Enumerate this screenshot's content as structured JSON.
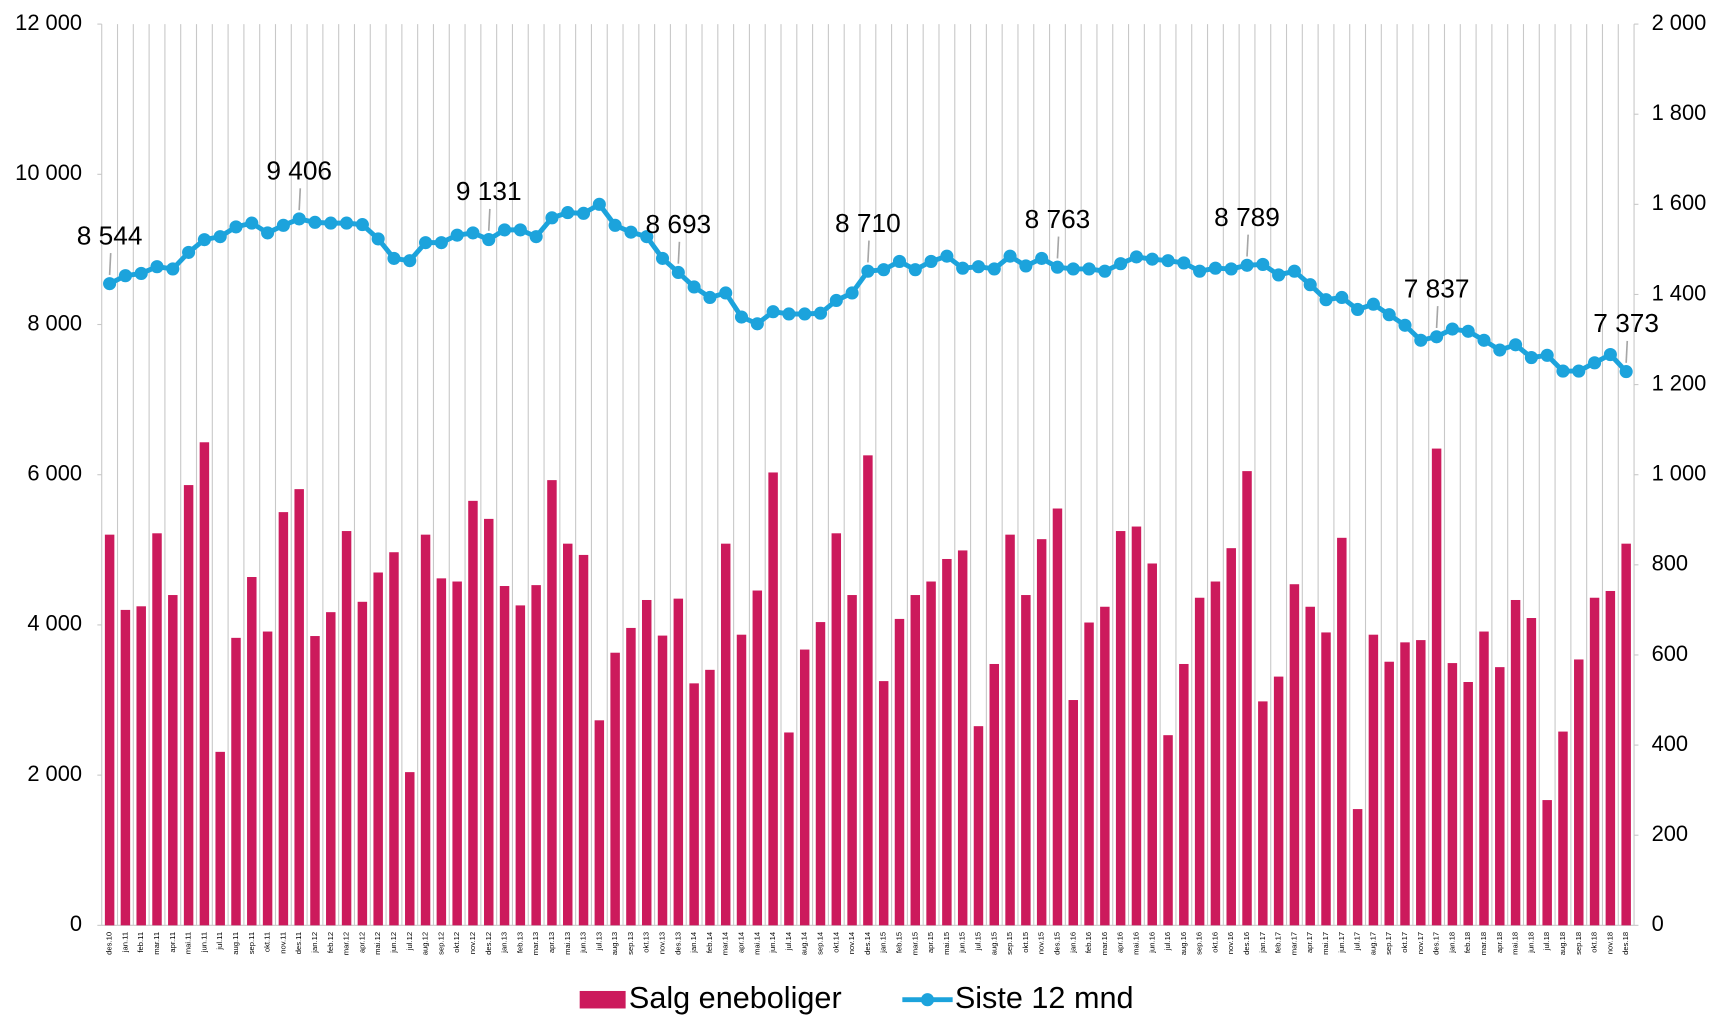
{
  "chart_data": {
    "type": "combo",
    "categories": [
      "des.10",
      "jan.11",
      "feb.11",
      "mar.11",
      "apr.11",
      "mai.11",
      "jun.11",
      "jul.11",
      "aug.11",
      "sep.11",
      "okt.11",
      "nov.11",
      "des.11",
      "jan.12",
      "feb.12",
      "mar.12",
      "apr.12",
      "mai.12",
      "jun.12",
      "jul.12",
      "aug.12",
      "sep.12",
      "okt.12",
      "nov.12",
      "des.12",
      "jan.13",
      "feb.13",
      "mar.13",
      "apr.13",
      "mai.13",
      "jun.13",
      "jul.13",
      "aug.13",
      "sep.13",
      "okt.13",
      "nov.13",
      "des.13",
      "jan.14",
      "feb.14",
      "mar.14",
      "apr.14",
      "mai.14",
      "jun.14",
      "jul.14",
      "aug.14",
      "sep.14",
      "okt.14",
      "nov.14",
      "des.14",
      "jan.15",
      "feb.15",
      "mar.15",
      "apr.15",
      "mai.15",
      "jun.15",
      "jul.15",
      "aug.15",
      "sep.15",
      "okt.15",
      "nov.15",
      "des.15",
      "jan.16",
      "feb.16",
      "mar.16",
      "apr.16",
      "mai.16",
      "jun.16",
      "jul.16",
      "aug.16",
      "sep.16",
      "okt.16",
      "nov.16",
      "des.16",
      "jan.17",
      "feb.17",
      "mar.17",
      "apr.17",
      "mai.17",
      "jun.17",
      "jul.17",
      "aug.17",
      "sep.17",
      "okt.17",
      "nov.17",
      "des.17",
      "jan.18",
      "feb.18",
      "mar.18",
      "apr.18",
      "mai.18",
      "jun.18",
      "jul.18",
      "aug.18",
      "sep.18",
      "okt.18",
      "nov.18",
      "des.18"
    ],
    "series": [
      {
        "name": "Salg eneboliger",
        "type": "bar",
        "axis": "y2",
        "color": "#cc1a5c",
        "values": [
          867,
          700,
          708,
          870,
          733,
          977,
          1072,
          385,
          638,
          773,
          652,
          917,
          968,
          642,
          695,
          875,
          718,
          783,
          828,
          340,
          867,
          770,
          763,
          942,
          902,
          753,
          710,
          755,
          988,
          847,
          822,
          455,
          605,
          660,
          722,
          643,
          725,
          537,
          567,
          847,
          645,
          743,
          1005,
          428,
          612,
          673,
          870,
          733,
          1043,
          542,
          680,
          733,
          763,
          813,
          832,
          442,
          580,
          867,
          733,
          857,
          925,
          500,
          672,
          707,
          875,
          885,
          803,
          422,
          580,
          727,
          763,
          837,
          1008,
          497,
          552,
          757,
          707,
          650,
          860,
          258,
          645,
          585,
          628,
          633,
          1058,
          582,
          540,
          652,
          573,
          722,
          682,
          278,
          430,
          590,
          727,
          742,
          847
        ]
      },
      {
        "name": "Siste 12 mnd",
        "type": "line",
        "color": "#1ca3dc",
        "values": [
          8544,
          8650,
          8680,
          8770,
          8740,
          8960,
          9130,
          9170,
          9300,
          9350,
          9220,
          9320,
          9406,
          9360,
          9350,
          9350,
          9330,
          9140,
          8880,
          8850,
          9090,
          9090,
          9190,
          9220,
          9131,
          9260,
          9260,
          9170,
          9420,
          9490,
          9480,
          9600,
          9320,
          9230,
          9170,
          8880,
          8693,
          8500,
          8360,
          8420,
          8100,
          8010,
          8170,
          8140,
          8140,
          8150,
          8320,
          8420,
          8710,
          8730,
          8840,
          8730,
          8840,
          8910,
          8750,
          8770,
          8740,
          8910,
          8780,
          8880,
          8763,
          8740,
          8740,
          8710,
          8810,
          8900,
          8870,
          8850,
          8820,
          8710,
          8750,
          8740,
          8789,
          8800,
          8660,
          8710,
          8530,
          8330,
          8360,
          8200,
          8270,
          8130,
          7990,
          7790,
          7837,
          7940,
          7910,
          7790,
          7660,
          7730,
          7560,
          7590,
          7380,
          7380,
          7490,
          7600,
          7373
        ],
        "value_labels": [
          "8 544",
          null,
          null,
          null,
          null,
          null,
          null,
          null,
          null,
          null,
          null,
          null,
          "9 406",
          null,
          null,
          null,
          null,
          null,
          null,
          null,
          null,
          null,
          null,
          null,
          "9 131",
          null,
          null,
          null,
          null,
          null,
          null,
          null,
          null,
          null,
          null,
          null,
          "8 693",
          null,
          null,
          null,
          null,
          null,
          null,
          null,
          null,
          null,
          null,
          null,
          "8 710",
          null,
          null,
          null,
          null,
          null,
          null,
          null,
          null,
          null,
          null,
          null,
          "8 763",
          null,
          null,
          null,
          null,
          null,
          null,
          null,
          null,
          null,
          null,
          null,
          "8 789",
          null,
          null,
          null,
          null,
          null,
          null,
          null,
          null,
          null,
          null,
          null,
          "7 837",
          null,
          null,
          null,
          null,
          null,
          null,
          null,
          null,
          null,
          null,
          null,
          "7 373"
        ]
      }
    ],
    "ylim": [
      0,
      12000
    ],
    "yticks": [
      0,
      {
        "value": 2000,
        "label": "2 000"
      },
      {
        "value": 4000,
        "label": "4 000"
      },
      {
        "value": 6000,
        "label": "6 000"
      },
      {
        "value": 8000,
        "label": "8 000"
      },
      {
        "value": 10000,
        "label": "10 000"
      },
      {
        "value": 12000,
        "label": "12 000"
      }
    ],
    "y2lim": [
      0,
      2000
    ],
    "y2ticks": [
      0,
      200,
      400,
      600,
      800,
      {
        "value": 1000,
        "label": "1 000"
      },
      {
        "value": 1200,
        "label": "1 200"
      },
      {
        "value": 1400,
        "label": "1 400"
      },
      {
        "value": 1600,
        "label": "1 600"
      },
      {
        "value": 1800,
        "label": "1 800"
      },
      {
        "value": 2000,
        "label": "2 000"
      }
    ],
    "legend": "bottom"
  }
}
